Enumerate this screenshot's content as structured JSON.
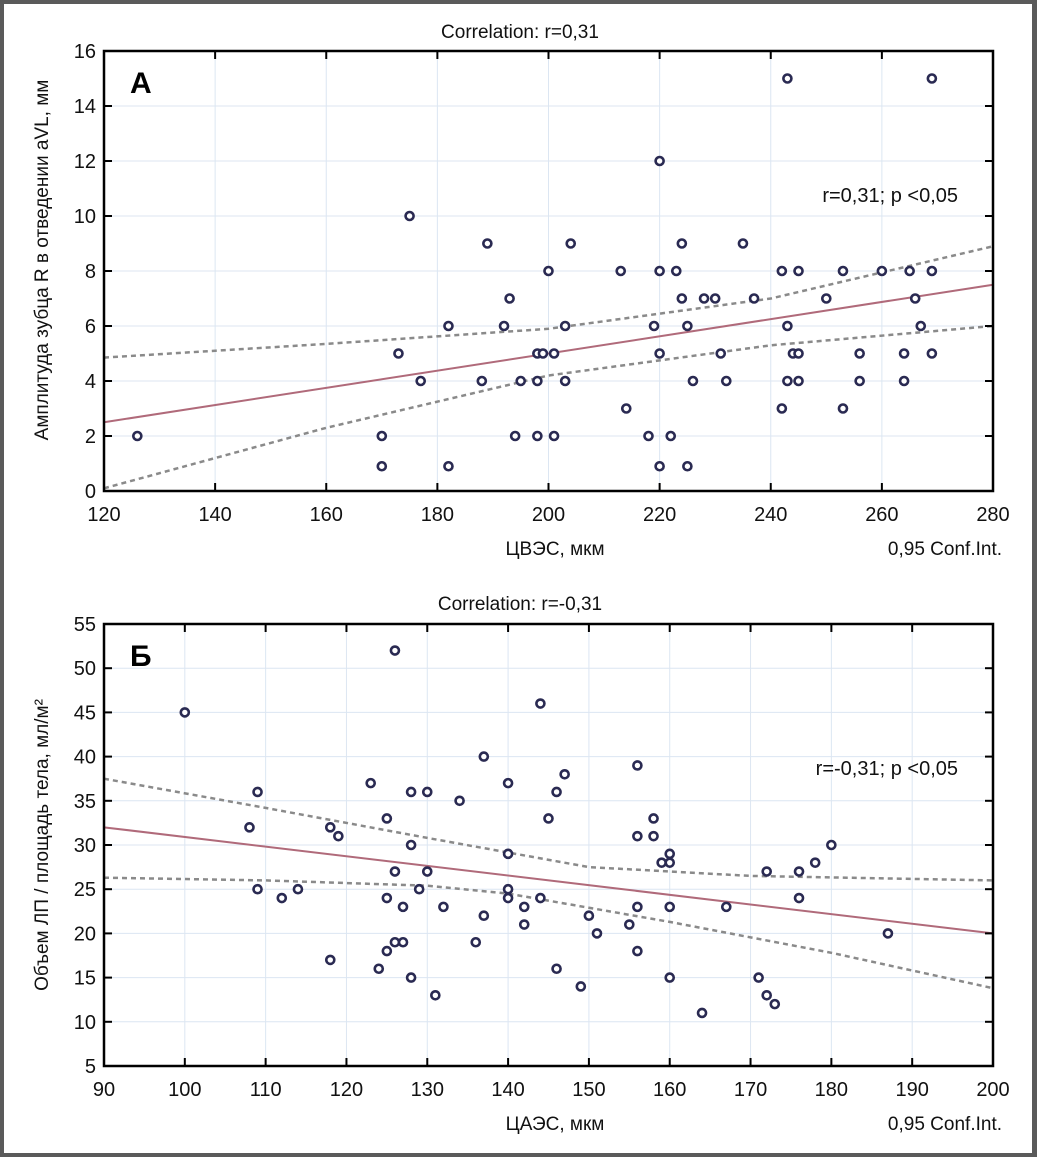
{
  "chart_data": [
    {
      "type": "scatter",
      "panel": "A",
      "title": "Correlation: r=0,31",
      "xlabel": "ЦВЭС, мкм",
      "ylabel": "Амплитуда зубца R в отведении aVL, мм",
      "legend_note": "0,95 Conf.Int.",
      "annotation": "r=0,31; p <0,05",
      "xlim": [
        120,
        280
      ],
      "ylim": [
        0,
        16
      ],
      "xticks": [
        120,
        140,
        160,
        180,
        200,
        220,
        240,
        260,
        280
      ],
      "yticks": [
        0,
        2,
        4,
        6,
        8,
        10,
        12,
        14,
        16
      ],
      "grid": true,
      "fit_line": {
        "x0": 120,
        "y0": 2.5,
        "x1": 280,
        "y1": 7.5
      },
      "ci_upper": [
        [
          120,
          4.85
        ],
        [
          160,
          5.35
        ],
        [
          200,
          5.9
        ],
        [
          240,
          7.0
        ],
        [
          280,
          8.9
        ]
      ],
      "ci_lower": [
        [
          120,
          0.1
        ],
        [
          160,
          2.3
        ],
        [
          200,
          4.2
        ],
        [
          240,
          5.3
        ],
        [
          280,
          6.0
        ]
      ],
      "points": [
        [
          126,
          2
        ],
        [
          170,
          2
        ],
        [
          170,
          0.9
        ],
        [
          173,
          5
        ],
        [
          175,
          10
        ],
        [
          177,
          4
        ],
        [
          182,
          6
        ],
        [
          182,
          0.9
        ],
        [
          188,
          4
        ],
        [
          189,
          9
        ],
        [
          192,
          6
        ],
        [
          193,
          7
        ],
        [
          194,
          2
        ],
        [
          195,
          4
        ],
        [
          198,
          2
        ],
        [
          198,
          4
        ],
        [
          198,
          5
        ],
        [
          199,
          5
        ],
        [
          201,
          5
        ],
        [
          200,
          8
        ],
        [
          201,
          2
        ],
        [
          203,
          6
        ],
        [
          203,
          4
        ],
        [
          204,
          9
        ],
        [
          213,
          8
        ],
        [
          214,
          3
        ],
        [
          218,
          2
        ],
        [
          219,
          6
        ],
        [
          220,
          12
        ],
        [
          220,
          8
        ],
        [
          220,
          5
        ],
        [
          220,
          0.9
        ],
        [
          222,
          2
        ],
        [
          223,
          8
        ],
        [
          224,
          9
        ],
        [
          224,
          7
        ],
        [
          225,
          6
        ],
        [
          225,
          0.9
        ],
        [
          226,
          4
        ],
        [
          228,
          7
        ],
        [
          230,
          7
        ],
        [
          231,
          5
        ],
        [
          232,
          4
        ],
        [
          235,
          9
        ],
        [
          237,
          7
        ],
        [
          242,
          8
        ],
        [
          242,
          3
        ],
        [
          243,
          15
        ],
        [
          243,
          6
        ],
        [
          243,
          4
        ],
        [
          244,
          5
        ],
        [
          245,
          5
        ],
        [
          245,
          8
        ],
        [
          245,
          4
        ],
        [
          250,
          7
        ],
        [
          253,
          8
        ],
        [
          253,
          3
        ],
        [
          256,
          5
        ],
        [
          256,
          4
        ],
        [
          260,
          8
        ],
        [
          264,
          5
        ],
        [
          264,
          4
        ],
        [
          265,
          8
        ],
        [
          266,
          7
        ],
        [
          267,
          6
        ],
        [
          269,
          15
        ],
        [
          269,
          8
        ],
        [
          269,
          5
        ]
      ]
    },
    {
      "type": "scatter",
      "panel": "Б",
      "title": "Correlation: r=-0,31",
      "xlabel": "ЦАЭС, мкм",
      "ylabel": "Объем ЛП / площадь тела, мл/м²",
      "legend_note": "0,95 Conf.Int.",
      "annotation": "r=-0,31; p <0,05",
      "xlim": [
        90,
        200
      ],
      "ylim": [
        5,
        55
      ],
      "xticks": [
        90,
        100,
        110,
        120,
        130,
        140,
        150,
        160,
        170,
        180,
        190,
        200
      ],
      "yticks": [
        5,
        10,
        15,
        20,
        25,
        30,
        35,
        40,
        45,
        50,
        55
      ],
      "grid": true,
      "fit_line": {
        "x0": 90,
        "y0": 32,
        "x1": 200,
        "y1": 20
      },
      "ci_upper": [
        [
          90,
          37.5
        ],
        [
          110,
          34.2
        ],
        [
          130,
          30.8
        ],
        [
          150,
          27.5
        ],
        [
          170,
          26.5
        ],
        [
          200,
          26
        ]
      ],
      "ci_lower": [
        [
          90,
          26.3
        ],
        [
          110,
          26.0
        ],
        [
          130,
          25.4
        ],
        [
          140,
          24.5
        ],
        [
          160,
          21.3
        ],
        [
          180,
          17.8
        ],
        [
          200,
          13.8
        ]
      ],
      "points": [
        [
          100,
          45
        ],
        [
          108,
          32
        ],
        [
          109,
          36
        ],
        [
          109,
          25
        ],
        [
          112,
          24
        ],
        [
          114,
          25
        ],
        [
          118,
          32
        ],
        [
          118,
          17
        ],
        [
          119,
          31
        ],
        [
          123,
          37
        ],
        [
          124,
          16
        ],
        [
          125,
          33
        ],
        [
          125,
          24
        ],
        [
          125,
          18
        ],
        [
          126,
          52
        ],
        [
          126,
          27
        ],
        [
          126,
          19
        ],
        [
          127,
          19
        ],
        [
          127,
          23
        ],
        [
          128,
          36
        ],
        [
          128,
          30
        ],
        [
          128,
          15
        ],
        [
          129,
          25
        ],
        [
          130,
          36
        ],
        [
          130,
          27
        ],
        [
          131,
          13
        ],
        [
          132,
          23
        ],
        [
          134,
          35
        ],
        [
          136,
          19
        ],
        [
          137,
          40
        ],
        [
          137,
          22
        ],
        [
          140,
          37
        ],
        [
          140,
          29
        ],
        [
          140,
          25
        ],
        [
          140,
          24
        ],
        [
          142,
          23
        ],
        [
          142,
          21
        ],
        [
          144,
          46
        ],
        [
          144,
          24
        ],
        [
          145,
          33
        ],
        [
          146,
          36
        ],
        [
          146,
          16
        ],
        [
          147,
          38
        ],
        [
          149,
          14
        ],
        [
          150,
          22
        ],
        [
          151,
          20
        ],
        [
          155,
          21
        ],
        [
          156,
          39
        ],
        [
          156,
          31
        ],
        [
          156,
          23
        ],
        [
          156,
          18
        ],
        [
          158,
          33
        ],
        [
          158,
          31
        ],
        [
          159,
          28
        ],
        [
          160,
          29
        ],
        [
          160,
          28
        ],
        [
          160,
          23
        ],
        [
          160,
          15
        ],
        [
          164,
          11
        ],
        [
          167,
          23
        ],
        [
          171,
          15
        ],
        [
          172,
          27
        ],
        [
          172,
          13
        ],
        [
          173,
          12
        ],
        [
          176,
          27
        ],
        [
          176,
          24
        ],
        [
          178,
          28
        ],
        [
          180,
          30
        ],
        [
          187,
          20
        ]
      ]
    }
  ]
}
